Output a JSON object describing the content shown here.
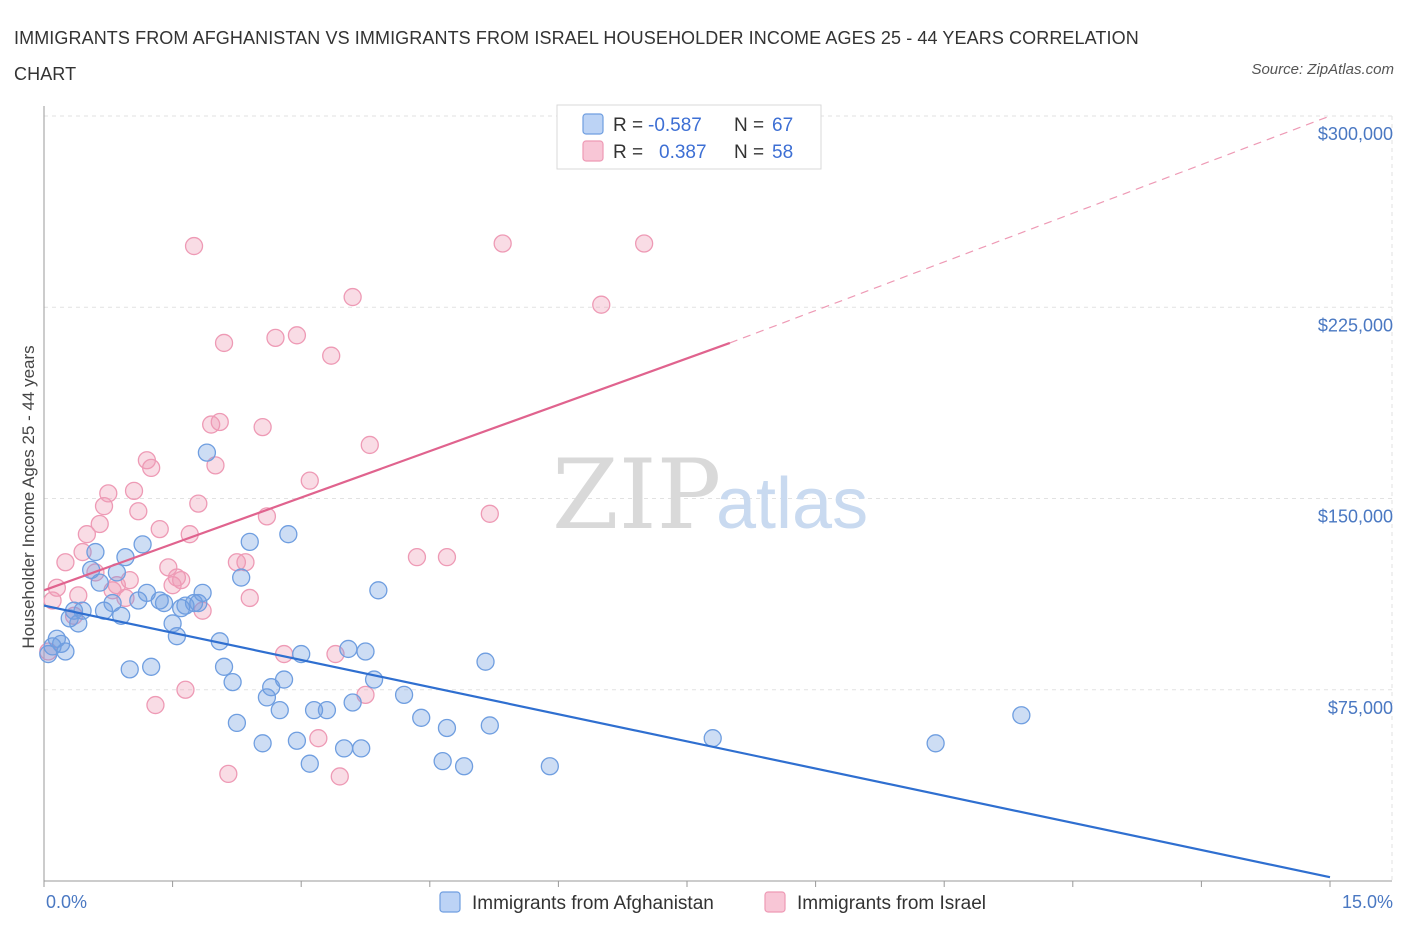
{
  "header": {
    "title": "IMMIGRANTS FROM AFGHANISTAN VS IMMIGRANTS FROM ISRAEL HOUSEHOLDER INCOME AGES 25 - 44 YEARS CORRELATION CHART",
    "source": "Source: ZipAtlas.com"
  },
  "watermark": {
    "zip": "ZIP",
    "atlas": "atlas"
  },
  "legend": {
    "rows": [
      {
        "r_label": "R =",
        "r_value": "-0.587",
        "n_label": "N =",
        "n_value": "67"
      },
      {
        "r_label": "R =",
        "r_value": "0.387",
        "n_label": "N =",
        "n_value": "58"
      }
    ]
  },
  "bottom_legend": [
    "Immigrants from Afghanistan",
    "Immigrants from Israel"
  ],
  "colors": {
    "afghanistan": "#6f9ee0",
    "afghanistan_line": "#2f6fd0",
    "israel": "#ee9ab5",
    "israel_line": "#e0638e",
    "grid": "#e2e2e2",
    "axis_text": "#4a78c2"
  },
  "chart_data": {
    "type": "scatter",
    "title": "IMMIGRANTS FROM AFGHANISTAN VS IMMIGRANTS FROM ISRAEL HOUSEHOLDER INCOME AGES 25 - 44 YEARS CORRELATION CHART",
    "xlabel": "",
    "ylabel": "Householder Income Ages 25 - 44 years",
    "xlim": [
      0,
      15
    ],
    "ylim": [
      0,
      300000
    ],
    "x_tick_labels": [
      "0.0%",
      "15.0%"
    ],
    "y_ticks": [
      75000,
      150000,
      225000,
      300000
    ],
    "y_tick_labels": [
      "$75,000",
      "$150,000",
      "$225,000",
      "$300,000"
    ],
    "grid": true,
    "legend_position": "top-center",
    "series": [
      {
        "name": "Immigrants from Afghanistan",
        "R": -0.587,
        "N": 67,
        "trend": {
          "x0": 0,
          "y0": 108000,
          "x1": 15,
          "y1": 1500
        },
        "points": [
          [
            0.05,
            89000
          ],
          [
            0.1,
            92000
          ],
          [
            0.15,
            95000
          ],
          [
            0.25,
            90000
          ],
          [
            0.3,
            103000
          ],
          [
            0.35,
            106000
          ],
          [
            0.4,
            101000
          ],
          [
            0.45,
            106000
          ],
          [
            0.55,
            122000
          ],
          [
            0.6,
            129000
          ],
          [
            0.65,
            117000
          ],
          [
            0.7,
            106000
          ],
          [
            0.8,
            109000
          ],
          [
            0.85,
            121000
          ],
          [
            0.9,
            104000
          ],
          [
            0.95,
            127000
          ],
          [
            1.0,
            83000
          ],
          [
            1.1,
            110000
          ],
          [
            1.15,
            132000
          ],
          [
            1.2,
            113000
          ],
          [
            1.25,
            84000
          ],
          [
            1.35,
            110000
          ],
          [
            1.4,
            109000
          ],
          [
            1.5,
            101000
          ],
          [
            1.55,
            96000
          ],
          [
            1.6,
            107000
          ],
          [
            1.65,
            108000
          ],
          [
            1.75,
            109000
          ],
          [
            1.8,
            109000
          ],
          [
            1.85,
            113000
          ],
          [
            1.9,
            168000
          ],
          [
            2.05,
            94000
          ],
          [
            2.1,
            84000
          ],
          [
            2.2,
            78000
          ],
          [
            2.25,
            62000
          ],
          [
            2.3,
            119000
          ],
          [
            2.4,
            133000
          ],
          [
            2.55,
            54000
          ],
          [
            2.6,
            72000
          ],
          [
            2.65,
            76000
          ],
          [
            2.75,
            67000
          ],
          [
            2.8,
            79000
          ],
          [
            2.85,
            136000
          ],
          [
            2.95,
            55000
          ],
          [
            3.0,
            89000
          ],
          [
            3.1,
            46000
          ],
          [
            3.15,
            67000
          ],
          [
            3.3,
            67000
          ],
          [
            3.5,
            52000
          ],
          [
            3.55,
            91000
          ],
          [
            3.6,
            70000
          ],
          [
            3.7,
            52000
          ],
          [
            3.75,
            90000
          ],
          [
            3.85,
            79000
          ],
          [
            3.9,
            114000
          ],
          [
            4.2,
            73000
          ],
          [
            4.4,
            64000
          ],
          [
            4.65,
            47000
          ],
          [
            4.7,
            60000
          ],
          [
            4.9,
            45000
          ],
          [
            5.15,
            86000
          ],
          [
            5.2,
            61000
          ],
          [
            5.9,
            45000
          ],
          [
            7.8,
            56000
          ],
          [
            10.4,
            54000
          ],
          [
            11.4,
            65000
          ],
          [
            0.2,
            93000
          ]
        ]
      },
      {
        "name": "Immigrants from Israel",
        "R": 0.387,
        "N": 58,
        "trend": {
          "x0": 0,
          "y0": 114000,
          "x1": 8.0,
          "y1": 211000,
          "dash_x1": 15,
          "dash_y1": 300000
        },
        "points": [
          [
            0.05,
            90000
          ],
          [
            0.1,
            110000
          ],
          [
            0.15,
            115000
          ],
          [
            0.25,
            125000
          ],
          [
            0.35,
            104000
          ],
          [
            0.4,
            112000
          ],
          [
            0.45,
            129000
          ],
          [
            0.5,
            136000
          ],
          [
            0.6,
            121000
          ],
          [
            0.65,
            140000
          ],
          [
            0.7,
            147000
          ],
          [
            0.75,
            152000
          ],
          [
            0.8,
            114000
          ],
          [
            0.85,
            116000
          ],
          [
            0.95,
            111000
          ],
          [
            1.0,
            118000
          ],
          [
            1.05,
            153000
          ],
          [
            1.1,
            145000
          ],
          [
            1.2,
            165000
          ],
          [
            1.25,
            162000
          ],
          [
            1.3,
            69000
          ],
          [
            1.35,
            138000
          ],
          [
            1.45,
            123000
          ],
          [
            1.5,
            116000
          ],
          [
            1.55,
            119000
          ],
          [
            1.6,
            118000
          ],
          [
            1.65,
            75000
          ],
          [
            1.7,
            136000
          ],
          [
            1.75,
            249000
          ],
          [
            1.8,
            148000
          ],
          [
            1.85,
            106000
          ],
          [
            1.95,
            179000
          ],
          [
            2.0,
            163000
          ],
          [
            2.05,
            180000
          ],
          [
            2.1,
            211000
          ],
          [
            2.15,
            42000
          ],
          [
            2.25,
            125000
          ],
          [
            2.35,
            125000
          ],
          [
            2.4,
            111000
          ],
          [
            2.55,
            178000
          ],
          [
            2.6,
            143000
          ],
          [
            2.7,
            213000
          ],
          [
            2.8,
            89000
          ],
          [
            2.95,
            214000
          ],
          [
            3.1,
            157000
          ],
          [
            3.2,
            56000
          ],
          [
            3.35,
            206000
          ],
          [
            3.4,
            89000
          ],
          [
            3.45,
            41000
          ],
          [
            3.6,
            229000
          ],
          [
            3.75,
            73000
          ],
          [
            3.8,
            171000
          ],
          [
            4.35,
            127000
          ],
          [
            4.7,
            127000
          ],
          [
            5.2,
            144000
          ],
          [
            5.35,
            250000
          ],
          [
            6.5,
            226000
          ],
          [
            7.0,
            250000
          ]
        ]
      }
    ]
  }
}
